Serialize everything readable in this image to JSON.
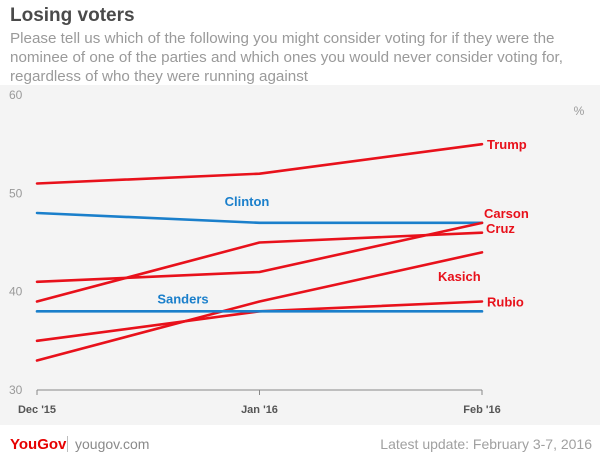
{
  "header": {
    "title": "Losing voters",
    "subtitle": "Please tell us which of the following you might consider voting for if they were the nominee of one of the parties and which ones you would never consider voting for, regardless of who they were running against"
  },
  "footer": {
    "brand": "YouGov",
    "site": "yougov.com",
    "update": "Latest update: February 3-7, 2016"
  },
  "chart_data": {
    "type": "line",
    "title": "Losing voters",
    "xlabel": "",
    "ylabel": "%",
    "x": [
      "Dec '15",
      "Jan '16",
      "Feb '16"
    ],
    "ylim": [
      30,
      60
    ],
    "yticks": [
      30,
      40,
      50,
      60
    ],
    "grid": false,
    "colors": {
      "republican": "#e8111b",
      "democrat": "#1a7fcb"
    },
    "series": [
      {
        "name": "Trump",
        "party": "republican",
        "values": [
          51,
          52,
          55
        ]
      },
      {
        "name": "Clinton",
        "party": "democrat",
        "values": [
          48,
          47,
          47
        ]
      },
      {
        "name": "Carson",
        "party": "republican",
        "values": [
          41,
          42,
          47
        ]
      },
      {
        "name": "Cruz",
        "party": "republican",
        "values": [
          39,
          45,
          46
        ]
      },
      {
        "name": "Kasich",
        "party": "republican",
        "values": [
          33,
          39,
          44
        ]
      },
      {
        "name": "Rubio",
        "party": "republican",
        "values": [
          35,
          38,
          39
        ]
      },
      {
        "name": "Sanders",
        "party": "democrat",
        "values": [
          38,
          38,
          38
        ]
      }
    ]
  }
}
